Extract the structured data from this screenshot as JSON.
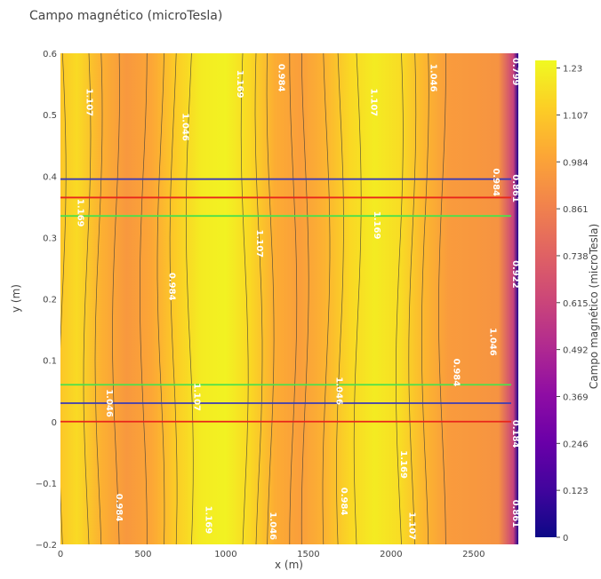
{
  "chart_data": {
    "type": "heatmap",
    "title": "Campo magnético (microTesla)",
    "xlabel": "x (m)",
    "ylabel": "y (m)",
    "xlim": [
      0,
      2770
    ],
    "ylim": [
      -0.2,
      0.6
    ],
    "x_ticks": [
      "0",
      "500",
      "1000",
      "1500",
      "2000",
      "2500"
    ],
    "x_tick_values": [
      0,
      500,
      1000,
      1500,
      2000,
      2500
    ],
    "y_ticks": [
      "−0.2",
      "−0.1",
      "0",
      "0.1",
      "0.2",
      "0.3",
      "0.4",
      "0.5",
      "0.6"
    ],
    "y_tick_values": [
      -0.2,
      -0.1,
      0,
      0.1,
      0.2,
      0.3,
      0.4,
      0.5,
      0.6
    ],
    "colorscale": "plasma",
    "colorbar": {
      "title": "Campo magnético (microTesla)",
      "min": 0,
      "max": 1.25,
      "ticks": [
        "0",
        "0.123",
        "0.246",
        "0.369",
        "0.492",
        "0.615",
        "0.738",
        "0.861",
        "0.984",
        "1.107",
        "1.23"
      ],
      "tick_values": [
        0,
        0.123,
        0.246,
        0.369,
        0.492,
        0.615,
        0.738,
        0.861,
        0.984,
        1.107,
        1.23
      ]
    },
    "field_profile_x": [
      0,
      100,
      250,
      400,
      550,
      700,
      850,
      1000,
      1150,
      1300,
      1450,
      1600,
      1750,
      1900,
      2050,
      2200,
      2350,
      2500,
      2650,
      2740,
      2770
    ],
    "field_profile_value": [
      1.1,
      1.16,
      1.03,
      0.95,
      1.0,
      1.12,
      1.21,
      1.23,
      1.15,
      1.02,
      0.97,
      1.04,
      1.15,
      1.21,
      1.17,
      1.05,
      0.96,
      0.95,
      0.93,
      0.6,
      0.05
    ],
    "contour_labels": [
      {
        "text": "1.107",
        "x": 160,
        "y": 0.52
      },
      {
        "text": "1.169",
        "x": 105,
        "y": 0.34
      },
      {
        "text": "1.046",
        "x": 280,
        "y": 0.03
      },
      {
        "text": "0.984",
        "x": 340,
        "y": -0.14
      },
      {
        "text": "1.046",
        "x": 740,
        "y": 0.48
      },
      {
        "text": "0.984",
        "x": 660,
        "y": 0.22
      },
      {
        "text": "1.107",
        "x": 810,
        "y": 0.04
      },
      {
        "text": "1.169",
        "x": 880,
        "y": -0.16
      },
      {
        "text": "1.169",
        "x": 1070,
        "y": 0.55
      },
      {
        "text": "1.107",
        "x": 1190,
        "y": 0.29
      },
      {
        "text": "1.046",
        "x": 1270,
        "y": -0.17
      },
      {
        "text": "0.984",
        "x": 1320,
        "y": 0.56
      },
      {
        "text": "1.107",
        "x": 1880,
        "y": 0.52
      },
      {
        "text": "1.169",
        "x": 1900,
        "y": 0.32
      },
      {
        "text": "1.046",
        "x": 1670,
        "y": 0.05
      },
      {
        "text": "0.984",
        "x": 1700,
        "y": -0.13
      },
      {
        "text": "1.046",
        "x": 2240,
        "y": 0.56
      },
      {
        "text": "0.984",
        "x": 2380,
        "y": 0.08
      },
      {
        "text": "1.169",
        "x": 2060,
        "y": -0.07
      },
      {
        "text": "1.107",
        "x": 2110,
        "y": -0.17
      },
      {
        "text": "1.046",
        "x": 2600,
        "y": 0.13
      },
      {
        "text": "0.984",
        "x": 2620,
        "y": 0.39
      },
      {
        "text": "0.799",
        "x": 2770,
        "y": 0.57
      },
      {
        "text": "0.861",
        "x": 2770,
        "y": 0.38
      },
      {
        "text": "0.922",
        "x": 2770,
        "y": 0.24
      },
      {
        "text": "0.184",
        "x": 2770,
        "y": -0.02
      },
      {
        "text": "0.861",
        "x": 2770,
        "y": -0.15
      }
    ],
    "horizontal_lines": [
      {
        "y": 0.395,
        "color": "#3b3bb5"
      },
      {
        "y": 0.365,
        "color": "#e8261a"
      },
      {
        "y": 0.335,
        "color": "#4ce04a"
      },
      {
        "y": 0.06,
        "color": "#4ce04a"
      },
      {
        "y": 0.03,
        "color": "#3b3bb5"
      },
      {
        "y": 0.0,
        "color": "#e8261a"
      }
    ]
  }
}
